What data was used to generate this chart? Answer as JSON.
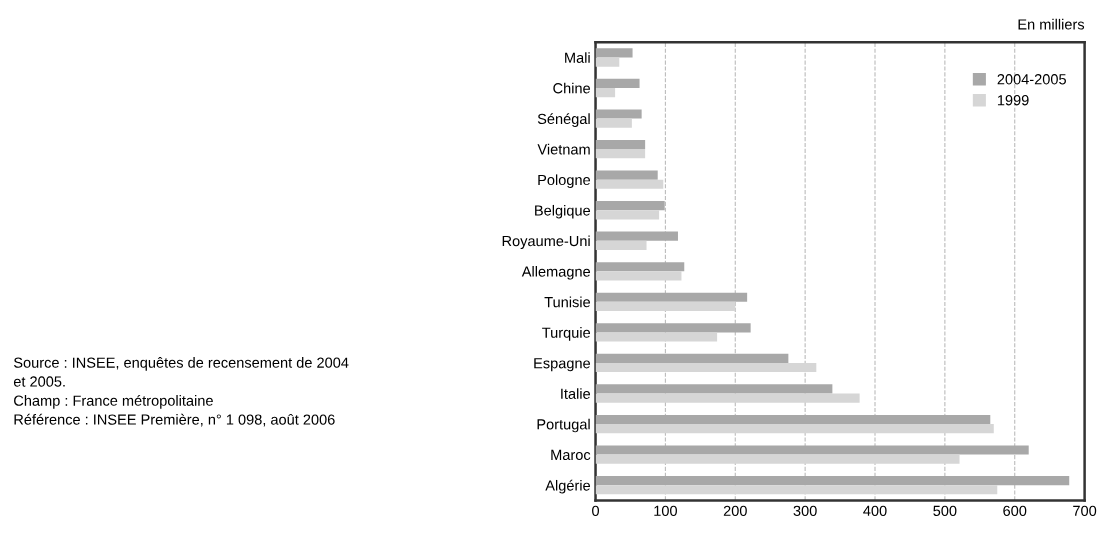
{
  "chart_data": {
    "type": "bar",
    "orientation": "horizontal",
    "categories": [
      "Mali",
      "Chine",
      "Sénégal",
      "Vietnam",
      "Pologne",
      "Belgique",
      "Royaume-Uni",
      "Allemagne",
      "Tunisie",
      "Turquie",
      "Espagne",
      "Italie",
      "Portugal",
      "Maroc",
      "Algérie"
    ],
    "series": [
      {
        "name": "2004-2005",
        "color": "#a8a8a8",
        "values": [
          53,
          63,
          66,
          71,
          89,
          99,
          118,
          127,
          217,
          222,
          276,
          339,
          565,
          620,
          678
        ]
      },
      {
        "name": "1999",
        "color": "#d6d6d6",
        "values": [
          34,
          28,
          52,
          71,
          97,
          91,
          73,
          123,
          200,
          174,
          316,
          378,
          570,
          521,
          575
        ]
      }
    ],
    "xlim": [
      0,
      700
    ],
    "xticks": [
      0,
      100,
      200,
      300,
      400,
      500,
      600,
      700
    ],
    "grid": "x",
    "legend": "top right",
    "annotations": [
      "En milliers",
      "Source : INSEE, enquêtes de recensement de 2004\net 2005.\nChamp : France métropolitaine\nRéférence : INSEE Première, n° 1 098, août 2006"
    ]
  }
}
